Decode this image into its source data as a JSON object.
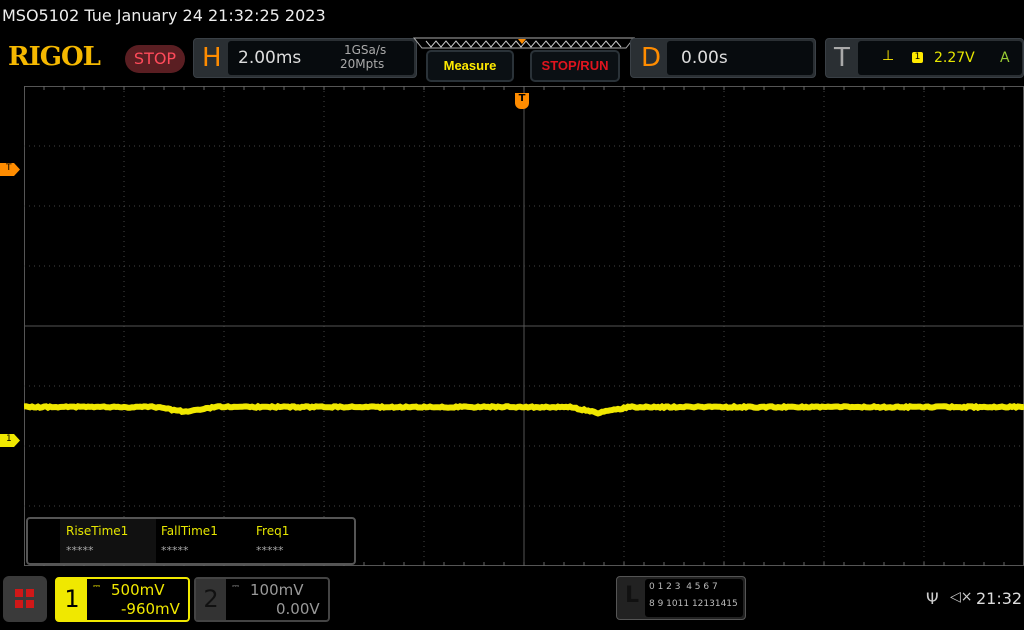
{
  "title": "MSO5102  Tue January 24 21:32:25 2023",
  "logo": "RIGOL",
  "run_state": "STOP",
  "horizontal": {
    "letter": "H",
    "timebase": "2.00ms",
    "sample_rate": "1GSa/s",
    "memory_depth": "20Mpts"
  },
  "buttons": {
    "measure": "Measure",
    "stop_run": "STOP/RUN"
  },
  "delay": {
    "letter": "D",
    "value": "0.00s"
  },
  "trigger": {
    "letter": "T",
    "source": "1",
    "level": "2.27V",
    "mode": "A"
  },
  "markers": {
    "trigger_pos": "T",
    "trigger_level": "T",
    "ch1": "1"
  },
  "measurements": [
    {
      "name": "RiseTime1",
      "value": "*****"
    },
    {
      "name": "FallTime1",
      "value": "*****"
    },
    {
      "name": "Freq1",
      "value": "*****"
    }
  ],
  "ch1": {
    "num": "1",
    "scale": "500mV",
    "offset": "-960mV",
    "color": "#f0e800"
  },
  "ch2": {
    "num": "2",
    "scale": "100mV",
    "offset": "0.00V"
  },
  "logic": {
    "letter": "L",
    "row1": "0 1 2 3  4 5 6 7",
    "row2": "8 9 1011 12131415"
  },
  "status": {
    "time": "21:32",
    "usb_icon": "usb-icon",
    "mute_icon": "speaker-muted-icon"
  },
  "colors": {
    "accent": "#ff8c00",
    "trace": "#f0e800",
    "stop": "#ff4a5a"
  }
}
